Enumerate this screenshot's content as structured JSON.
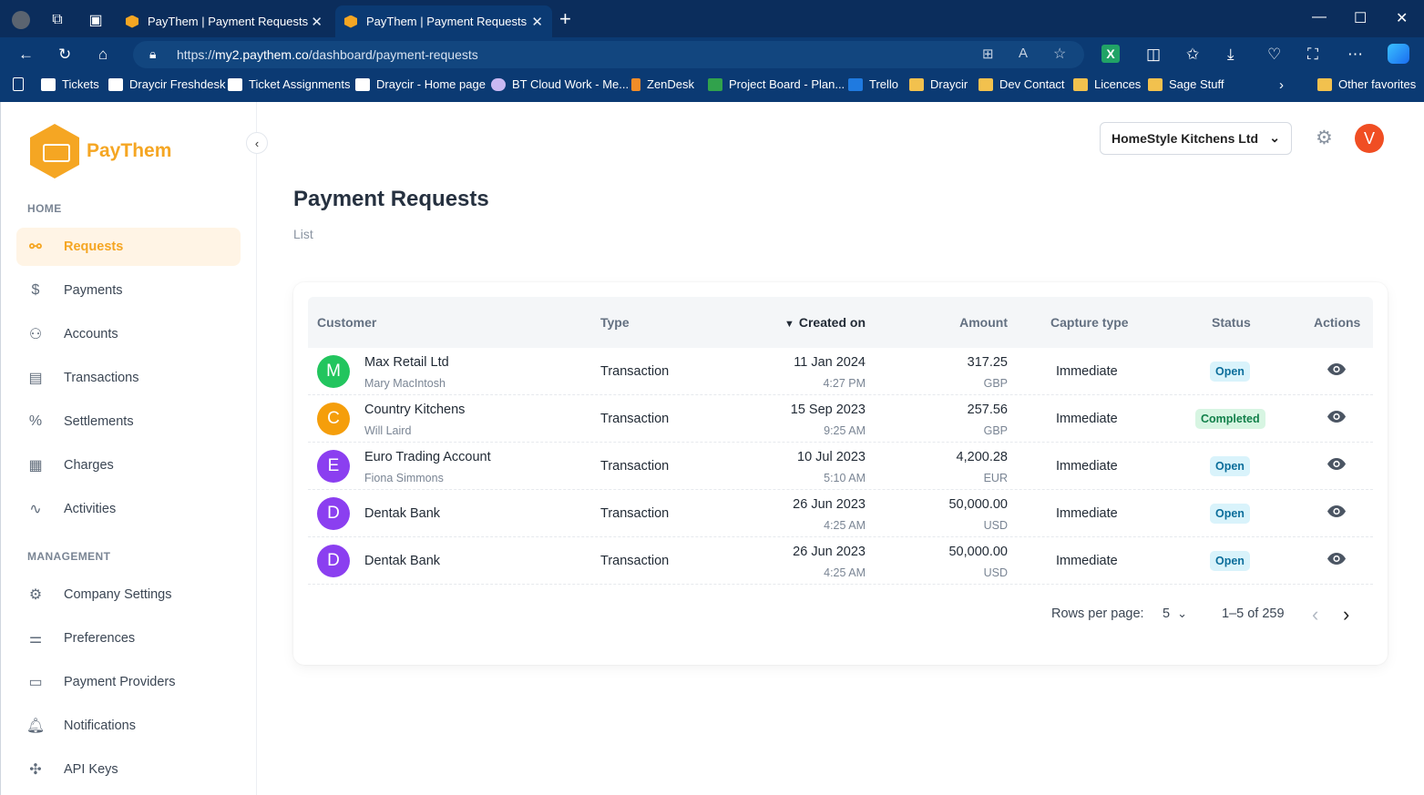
{
  "browser": {
    "tabs": [
      {
        "title": "PayThem | Payment Requests"
      },
      {
        "title": "PayThem | Payment Requests"
      }
    ],
    "url_prefix": "https://",
    "url_host": "my2.paythem.co",
    "url_path": "/dashboard/payment-requests",
    "bookmarks": [
      {
        "label": "Tickets"
      },
      {
        "label": "Draycir Freshdesk"
      },
      {
        "label": "Ticket Assignments"
      },
      {
        "label": "Draycir - Home page"
      },
      {
        "label": "BT Cloud Work - Me..."
      },
      {
        "label": "ZenDesk"
      },
      {
        "label": "Project Board - Plan..."
      },
      {
        "label": "Trello"
      },
      {
        "label": "Draycir"
      },
      {
        "label": "Dev Contact"
      },
      {
        "label": "Licences"
      },
      {
        "label": "Sage Stuff"
      }
    ],
    "other_favorites": "Other favorites"
  },
  "brand": {
    "name": "PayThem",
    "color": "#f5a623"
  },
  "sidebar": {
    "home_heading": "HOME",
    "home_items": [
      {
        "label": "Requests",
        "icon": "link-icon",
        "active": true
      },
      {
        "label": "Payments",
        "icon": "payment-icon"
      },
      {
        "label": "Accounts",
        "icon": "users-icon"
      },
      {
        "label": "Transactions",
        "icon": "receipt-icon"
      },
      {
        "label": "Settlements",
        "icon": "percent-icon"
      },
      {
        "label": "Charges",
        "icon": "calculator-icon"
      },
      {
        "label": "Activities",
        "icon": "activity-icon"
      }
    ],
    "management_heading": "MANAGEMENT",
    "management_items": [
      {
        "label": "Company Settings",
        "icon": "gear-icon"
      },
      {
        "label": "Preferences",
        "icon": "sliders-icon"
      },
      {
        "label": "Payment Providers",
        "icon": "card-icon"
      },
      {
        "label": "Notifications",
        "icon": "bell-icon"
      },
      {
        "label": "API Keys",
        "icon": "api-icon"
      }
    ]
  },
  "header": {
    "company": "HomeStyle Kitchens Ltd",
    "avatar_initial": "V"
  },
  "page": {
    "title": "Payment Requests",
    "breadcrumb": "List"
  },
  "table": {
    "columns": [
      "Customer",
      "Type",
      "Created on",
      "Amount",
      "Capture type",
      "Status",
      "Actions"
    ],
    "rows": [
      {
        "initial": "M",
        "color": "#22c55e",
        "name": "Max Retail Ltd",
        "contact": "Mary MacIntosh",
        "type": "Transaction",
        "date": "11 Jan 2024",
        "time": "4:27 PM",
        "amount": "317.25",
        "currency": "GBP",
        "capture": "Immediate",
        "status": "Open"
      },
      {
        "initial": "C",
        "color": "#f59e0b",
        "name": "Country Kitchens",
        "contact": "Will Laird",
        "type": "Transaction",
        "date": "15 Sep 2023",
        "time": "9:25 AM",
        "amount": "257.56",
        "currency": "GBP",
        "capture": "Immediate",
        "status": "Completed"
      },
      {
        "initial": "E",
        "color": "#8b3ff0",
        "name": "Euro Trading Account",
        "contact": "Fiona Simmons",
        "type": "Transaction",
        "date": "10 Jul 2023",
        "time": "5:10 AM",
        "amount": "4,200.28",
        "currency": "EUR",
        "capture": "Immediate",
        "status": "Open"
      },
      {
        "initial": "D",
        "color": "#8b3ff0",
        "name": "Dentak Bank",
        "contact": "",
        "type": "Transaction",
        "date": "26 Jun 2023",
        "time": "4:25 AM",
        "amount": "50,000.00",
        "currency": "USD",
        "capture": "Immediate",
        "status": "Open"
      },
      {
        "initial": "D",
        "color": "#8b3ff0",
        "name": "Dentak Bank",
        "contact": "",
        "type": "Transaction",
        "date": "26 Jun 2023",
        "time": "4:25 AM",
        "amount": "50,000.00",
        "currency": "USD",
        "capture": "Immediate",
        "status": "Open"
      }
    ]
  },
  "pagination": {
    "rows_label": "Rows per page:",
    "rows_value": "5",
    "range": "1–5 of 259"
  }
}
